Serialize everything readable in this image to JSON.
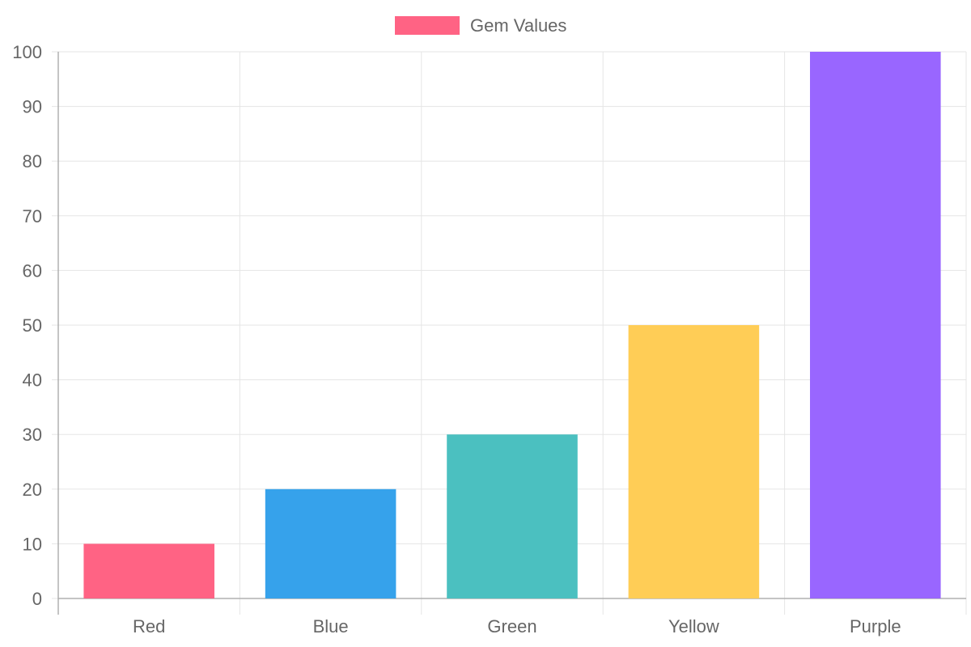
{
  "chart_data": {
    "type": "bar",
    "categories": [
      "Red",
      "Blue",
      "Green",
      "Yellow",
      "Purple"
    ],
    "series": [
      {
        "name": "Gem Values",
        "values": [
          10,
          20,
          30,
          50,
          100
        ],
        "colors": [
          "#ff6384",
          "#36a2eb",
          "#4bc0c0",
          "#ffcd56",
          "#9966ff"
        ]
      }
    ],
    "legend": {
      "position": "top",
      "label": "Gem Values",
      "swatch_color": "#ff6384"
    },
    "yticks": [
      "0",
      "10",
      "20",
      "30",
      "40",
      "50",
      "60",
      "70",
      "80",
      "90",
      "100"
    ],
    "ylim": [
      0,
      100
    ],
    "grid": true,
    "colors": {
      "grid": "#e5e5e5",
      "axis": "#b0b0b0",
      "text": "#666666"
    }
  }
}
